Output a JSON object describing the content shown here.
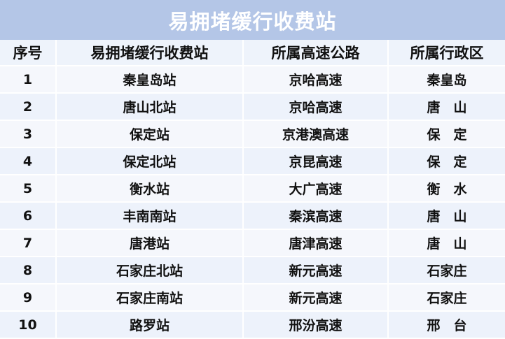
{
  "title": "易拥堵缓行收费站",
  "headers": [
    "序号",
    "易拥堵缓行收费站",
    "所属高速公路",
    "所属行政区"
  ],
  "rows": [
    [
      "1",
      "秦皇岛站",
      "京哈高速",
      "秦皇岛"
    ],
    [
      "2",
      "唐山北站",
      "京哈高速",
      "唐　山"
    ],
    [
      "3",
      "保定站",
      "京港澳高速",
      "保　定"
    ],
    [
      "4",
      "保定北站",
      "京昆高速",
      "保　定"
    ],
    [
      "5",
      "衡水站",
      "大广高速",
      "衡　水"
    ],
    [
      "6",
      "丰南南站",
      "秦滨高速",
      "唐　山"
    ],
    [
      "7",
      "唐港站",
      "唐津高速",
      "唐　山"
    ],
    [
      "8",
      "石家庄北站",
      "新元高速",
      "石家庄"
    ],
    [
      "9",
      "石家庄南站",
      "新元高速",
      "石家庄"
    ],
    [
      "10",
      "路罗站",
      "邢汾高速",
      "邢　台"
    ]
  ]
}
